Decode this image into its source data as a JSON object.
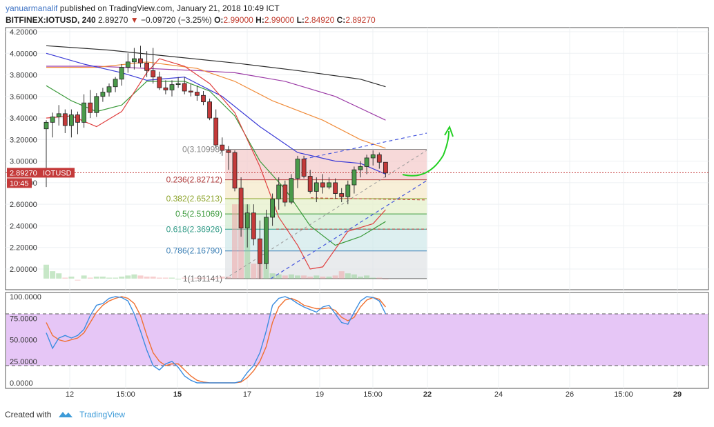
{
  "header": {
    "user": "yanuarmanalif",
    "published_text": "published on TradingView.com, January 21, 2018 10:49 ICT",
    "symbol": "BITFINEX:IOTUSD, 240",
    "last": "2.89270",
    "change_arrow": "▼",
    "change": "−0.09720 (−3.25%)",
    "o_label": "O:",
    "o_val": "2.99000",
    "h_label": "H:",
    "h_val": "2.99000",
    "l_label": "L:",
    "l_val": "2.84920",
    "c_label": "C:",
    "c_val": "2.89270"
  },
  "price_axis": {
    "ticks": [
      "4.20000",
      "4.00000",
      "3.80000",
      "3.60000",
      "3.40000",
      "3.20000",
      "3.00000",
      "2.80000",
      "2.60000",
      "2.40000",
      "2.20000",
      "2.00000"
    ],
    "last_price_label": "2.89270",
    "symbol_tag": "IOTUSD",
    "time_tag": "10:45"
  },
  "osc_axis": {
    "ticks": [
      "100.0000",
      "75.0000",
      "50.0000",
      "25.0000",
      "0.0000"
    ]
  },
  "time_axis": {
    "labels": [
      "12",
      "15:00",
      "15",
      "17",
      "19",
      "15:00",
      "22",
      "24",
      "26",
      "15:00",
      "29"
    ]
  },
  "fib_levels": [
    {
      "ratio": "0",
      "price": "3.10998",
      "label": "0(3.10998)",
      "color": "#888888"
    },
    {
      "ratio": "0.236",
      "price": "2.82712",
      "label": "0.236(2.82712)",
      "color": "#b03a3a"
    },
    {
      "ratio": "0.382",
      "price": "2.65213",
      "label": "0.382(2.65213)",
      "color": "#8ca32a"
    },
    {
      "ratio": "0.5",
      "price": "2.51069",
      "label": "0.5(2.51069)",
      "color": "#3e9b3e"
    },
    {
      "ratio": "0.618",
      "price": "2.36926",
      "label": "0.618(2.36926)",
      "color": "#2f9a86"
    },
    {
      "ratio": "0.786",
      "price": "2.16790",
      "label": "0.786(2.16790)",
      "color": "#3b7fb5"
    },
    {
      "ratio": "1",
      "price": "1.91141",
      "label": "1(1.91141)",
      "color": "#666666"
    }
  ],
  "colors": {
    "up": "#4a9a4a",
    "down": "#c43a3a",
    "stoch_k": "#3b8de0",
    "stoch_d": "#f07030",
    "osc_band": "#e6c6f6",
    "annotation_arrow": "#23d023",
    "trend_dash": "#4455dd"
  },
  "chart_data": {
    "type": "candlestick",
    "symbol": "BITFINEX:IOTUSD",
    "interval": "240",
    "ylim": [
      1.82,
      4.22
    ],
    "stoch_ylim": [
      0,
      100
    ],
    "stoch_bands": [
      80,
      20
    ],
    "candles": [
      {
        "o": 3.3,
        "h": 3.38,
        "l": 2.76,
        "c": 3.36
      },
      {
        "o": 3.36,
        "h": 3.45,
        "l": 3.22,
        "c": 3.41
      },
      {
        "o": 3.41,
        "h": 3.52,
        "l": 3.33,
        "c": 3.44
      },
      {
        "o": 3.44,
        "h": 3.48,
        "l": 3.26,
        "c": 3.33
      },
      {
        "o": 3.33,
        "h": 3.48,
        "l": 3.22,
        "c": 3.43
      },
      {
        "o": 3.43,
        "h": 3.46,
        "l": 3.25,
        "c": 3.36
      },
      {
        "o": 3.36,
        "h": 3.62,
        "l": 3.31,
        "c": 3.54
      },
      {
        "o": 3.54,
        "h": 3.66,
        "l": 3.4,
        "c": 3.45
      },
      {
        "o": 3.45,
        "h": 3.63,
        "l": 3.41,
        "c": 3.6
      },
      {
        "o": 3.6,
        "h": 3.68,
        "l": 3.55,
        "c": 3.64
      },
      {
        "o": 3.64,
        "h": 3.72,
        "l": 3.6,
        "c": 3.69
      },
      {
        "o": 3.69,
        "h": 3.78,
        "l": 3.64,
        "c": 3.76
      },
      {
        "o": 3.76,
        "h": 3.9,
        "l": 3.7,
        "c": 3.87
      },
      {
        "o": 3.87,
        "h": 4.0,
        "l": 3.82,
        "c": 3.92
      },
      {
        "o": 3.92,
        "h": 4.05,
        "l": 3.85,
        "c": 3.95
      },
      {
        "o": 3.95,
        "h": 4.07,
        "l": 3.87,
        "c": 3.91
      },
      {
        "o": 3.91,
        "h": 4.02,
        "l": 3.78,
        "c": 3.84
      },
      {
        "o": 3.84,
        "h": 4.05,
        "l": 3.72,
        "c": 3.78
      },
      {
        "o": 3.78,
        "h": 3.83,
        "l": 3.66,
        "c": 3.68
      },
      {
        "o": 3.68,
        "h": 3.75,
        "l": 3.62,
        "c": 3.66
      },
      {
        "o": 3.66,
        "h": 3.75,
        "l": 3.6,
        "c": 3.71
      },
      {
        "o": 3.71,
        "h": 3.78,
        "l": 3.68,
        "c": 3.72
      },
      {
        "o": 3.72,
        "h": 3.78,
        "l": 3.62,
        "c": 3.65
      },
      {
        "o": 3.65,
        "h": 3.72,
        "l": 3.6,
        "c": 3.64
      },
      {
        "o": 3.64,
        "h": 3.7,
        "l": 3.56,
        "c": 3.61
      },
      {
        "o": 3.61,
        "h": 3.65,
        "l": 3.52,
        "c": 3.55
      },
      {
        "o": 3.55,
        "h": 3.58,
        "l": 3.38,
        "c": 3.4
      },
      {
        "o": 3.4,
        "h": 3.48,
        "l": 3.12,
        "c": 3.15
      },
      {
        "o": 3.15,
        "h": 3.22,
        "l": 3.05,
        "c": 3.1
      },
      {
        "o": 3.1,
        "h": 3.14,
        "l": 2.92,
        "c": 3.08
      },
      {
        "o": 3.08,
        "h": 3.1,
        "l": 2.72,
        "c": 2.75
      },
      {
        "o": 2.75,
        "h": 2.85,
        "l": 2.3,
        "c": 2.38
      },
      {
        "o": 2.38,
        "h": 2.6,
        "l": 2.2,
        "c": 2.52
      },
      {
        "o": 2.52,
        "h": 2.6,
        "l": 2.22,
        "c": 2.28
      },
      {
        "o": 2.28,
        "h": 2.45,
        "l": 1.91,
        "c": 2.05
      },
      {
        "o": 2.05,
        "h": 2.55,
        "l": 2.0,
        "c": 2.48
      },
      {
        "o": 2.48,
        "h": 2.7,
        "l": 2.4,
        "c": 2.65
      },
      {
        "o": 2.65,
        "h": 2.85,
        "l": 2.55,
        "c": 2.78
      },
      {
        "o": 2.78,
        "h": 2.82,
        "l": 2.58,
        "c": 2.62
      },
      {
        "o": 2.62,
        "h": 2.88,
        "l": 2.6,
        "c": 2.84
      },
      {
        "o": 2.84,
        "h": 3.05,
        "l": 2.75,
        "c": 3.02
      },
      {
        "o": 3.02,
        "h": 3.05,
        "l": 2.84,
        "c": 2.86
      },
      {
        "o": 2.86,
        "h": 2.92,
        "l": 2.7,
        "c": 2.72
      },
      {
        "o": 2.72,
        "h": 2.85,
        "l": 2.62,
        "c": 2.8
      },
      {
        "o": 2.8,
        "h": 2.88,
        "l": 2.7,
        "c": 2.76
      },
      {
        "o": 2.76,
        "h": 2.85,
        "l": 2.74,
        "c": 2.8
      },
      {
        "o": 2.8,
        "h": 2.84,
        "l": 2.65,
        "c": 2.7
      },
      {
        "o": 2.7,
        "h": 2.75,
        "l": 2.62,
        "c": 2.67
      },
      {
        "o": 2.67,
        "h": 2.82,
        "l": 2.6,
        "c": 2.78
      },
      {
        "o": 2.78,
        "h": 2.95,
        "l": 2.7,
        "c": 2.92
      },
      {
        "o": 2.92,
        "h": 3.0,
        "l": 2.85,
        "c": 2.95
      },
      {
        "o": 2.95,
        "h": 3.06,
        "l": 2.88,
        "c": 3.03
      },
      {
        "o": 3.03,
        "h": 3.1,
        "l": 2.96,
        "c": 3.06
      },
      {
        "o": 3.06,
        "h": 3.08,
        "l": 2.93,
        "c": 2.99
      },
      {
        "o": 2.99,
        "h": 2.99,
        "l": 2.85,
        "c": 2.89
      }
    ],
    "moving_averages": [
      {
        "color": "#2a2a2a",
        "points": [
          [
            0,
            4.07
          ],
          [
            10,
            4.03
          ],
          [
            20,
            3.97
          ],
          [
            30,
            3.91
          ],
          [
            40,
            3.84
          ],
          [
            50,
            3.76
          ],
          [
            54,
            3.69
          ]
        ]
      },
      {
        "color": "#9b3aa6",
        "points": [
          [
            0,
            3.88
          ],
          [
            8,
            3.88
          ],
          [
            16,
            3.86
          ],
          [
            24,
            3.84
          ],
          [
            30,
            3.82
          ],
          [
            38,
            3.74
          ],
          [
            46,
            3.6
          ],
          [
            54,
            3.38
          ]
        ]
      },
      {
        "color": "#f08c3a",
        "points": [
          [
            0,
            3.87
          ],
          [
            8,
            3.87
          ],
          [
            16,
            3.92
          ],
          [
            24,
            3.86
          ],
          [
            30,
            3.74
          ],
          [
            36,
            3.56
          ],
          [
            44,
            3.38
          ],
          [
            50,
            3.2
          ],
          [
            54,
            3.12
          ]
        ]
      },
      {
        "color": "#3a3ad6",
        "points": [
          [
            0,
            4.0
          ],
          [
            6,
            3.9
          ],
          [
            12,
            3.82
          ],
          [
            16,
            3.75
          ],
          [
            22,
            3.78
          ],
          [
            28,
            3.6
          ],
          [
            34,
            3.32
          ],
          [
            40,
            3.08
          ],
          [
            46,
            3.0
          ],
          [
            50,
            2.98
          ],
          [
            54,
            2.88
          ]
        ]
      },
      {
        "color": "#3a9a3a",
        "points": [
          [
            0,
            3.7
          ],
          [
            4,
            3.56
          ],
          [
            8,
            3.46
          ],
          [
            12,
            3.52
          ],
          [
            16,
            3.74
          ],
          [
            22,
            3.74
          ],
          [
            26,
            3.65
          ],
          [
            30,
            3.42
          ],
          [
            34,
            3.0
          ],
          [
            38,
            2.74
          ],
          [
            42,
            2.4
          ],
          [
            46,
            2.22
          ],
          [
            50,
            2.3
          ],
          [
            54,
            2.44
          ]
        ]
      },
      {
        "color": "#e04040",
        "points": [
          [
            0,
            3.4
          ],
          [
            4,
            3.42
          ],
          [
            8,
            3.32
          ],
          [
            12,
            3.46
          ],
          [
            16,
            3.82
          ],
          [
            18,
            3.95
          ],
          [
            22,
            3.88
          ],
          [
            26,
            3.72
          ],
          [
            30,
            3.45
          ],
          [
            34,
            2.95
          ],
          [
            37,
            2.48
          ],
          [
            40,
            2.22
          ],
          [
            42,
            2.0
          ],
          [
            44,
            2.02
          ],
          [
            48,
            2.35
          ],
          [
            52,
            2.42
          ],
          [
            54,
            2.55
          ]
        ]
      }
    ],
    "volume": [
      2.04,
      1.98,
      1.96,
      1.92,
      1.93,
      1.9,
      1.94,
      1.92,
      1.93,
      1.93,
      1.92,
      1.92,
      1.93,
      1.94,
      1.95,
      1.94,
      1.93,
      1.93,
      1.92,
      1.92,
      1.92,
      1.91,
      1.92,
      1.91,
      1.92,
      1.92,
      1.91,
      1.92,
      1.93,
      1.93,
      2.6,
      2.6,
      2.6,
      2.05,
      2.05,
      2.05,
      1.96,
      1.95,
      1.94,
      1.95,
      1.94,
      1.94,
      1.93,
      1.94,
      1.93,
      1.93,
      1.94,
      1.98,
      1.96,
      1.95,
      1.93,
      1.94,
      1.92,
      1.92,
      1.91
    ],
    "stoch_k": [
      58,
      40,
      52,
      55,
      52,
      55,
      62,
      78,
      90,
      92,
      98,
      100,
      99,
      95,
      80,
      60,
      38,
      20,
      15,
      22,
      25,
      18,
      8,
      3,
      0,
      0,
      0,
      0,
      0,
      0,
      0,
      2,
      12,
      20,
      35,
      60,
      90,
      98,
      100,
      97,
      92,
      88,
      85,
      82,
      88,
      90,
      80,
      70,
      68,
      82,
      95,
      100,
      99,
      95,
      80
    ],
    "stoch_d": [
      70,
      55,
      50,
      48,
      50,
      52,
      58,
      70,
      82,
      90,
      95,
      98,
      100,
      98,
      92,
      78,
      55,
      35,
      25,
      20,
      22,
      22,
      15,
      8,
      3,
      1,
      0,
      0,
      0,
      0,
      0,
      1,
      6,
      14,
      25,
      42,
      70,
      88,
      96,
      98,
      95,
      90,
      88,
      86,
      86,
      87,
      84,
      76,
      72,
      76,
      88,
      96,
      99,
      97,
      88
    ]
  }
}
